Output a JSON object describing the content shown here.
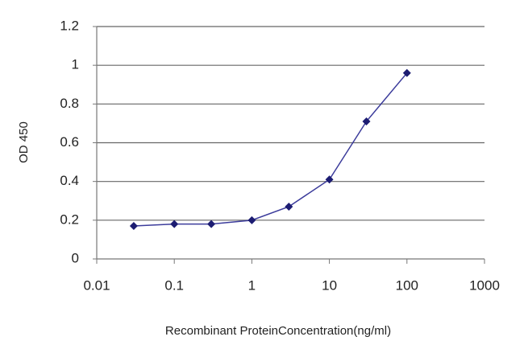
{
  "chart_data": {
    "type": "line",
    "xlabel": "Recombinant ProteinConcentration(ng/ml)",
    "ylabel": "OD 450",
    "xscale": "log",
    "x": [
      0.03,
      0.1,
      0.3,
      1,
      3,
      10,
      30,
      100
    ],
    "series": [
      {
        "color": "#3b3b9b",
        "marker_color": "#1c1c72",
        "values": [
          0.17,
          0.18,
          0.18,
          0.2,
          0.27,
          0.41,
          0.71,
          0.96
        ]
      }
    ],
    "xlim": [
      0.01,
      1000
    ],
    "xticks": [
      0.01,
      0.1,
      1,
      10,
      100,
      1000
    ],
    "ylim": [
      0,
      1.2
    ],
    "yticks": [
      0,
      0.2,
      0.4,
      0.6,
      0.8,
      1,
      1.2
    ],
    "grid": true
  }
}
